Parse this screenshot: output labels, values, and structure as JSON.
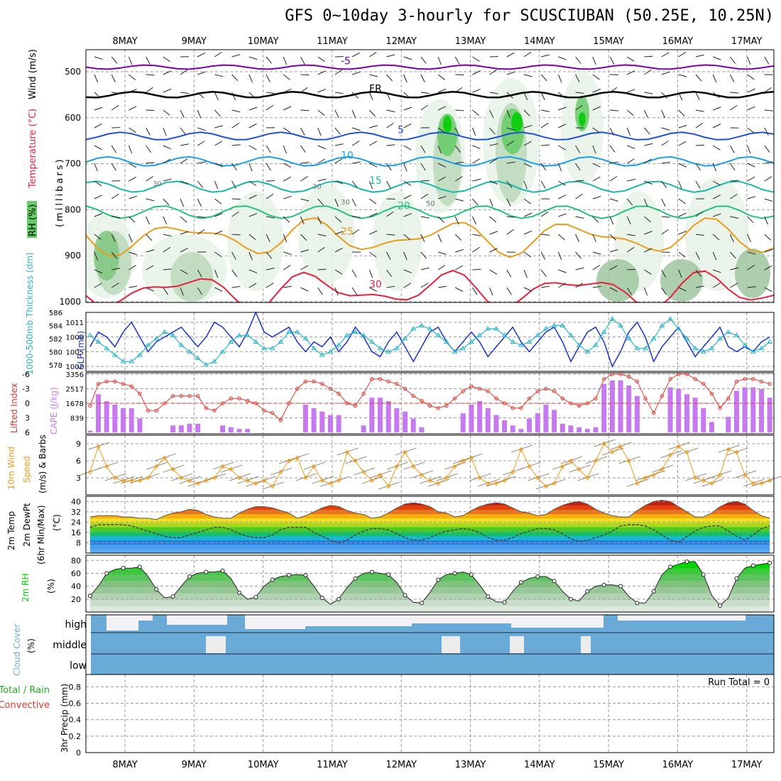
{
  "title": "GFS 0~10day 3-hourly for SCUSCIUBAN (50.25E, 10.25N)",
  "colors": {
    "rh_dark": "#00cc00",
    "rh_mid": "#66cc66",
    "rh_light": "#e6f2e6",
    "temp_purple": "#7a00a8",
    "temp_blue": "#1f4fd6",
    "temp_sky": "#1a9fe0",
    "temp_teal": "#19b6b0",
    "temp_green": "#22c27a",
    "temp_orange": "#e89c1a",
    "temp_red": "#e5213b",
    "slp": "#1a33c8",
    "thickness": "#2ab5c8",
    "lifted": "#e0362b",
    "cape": "#c77af0",
    "wind": "#e89c1a",
    "barb": "#8b6a4a",
    "cloud": "#6aaad6",
    "rh2m": "#00cc00",
    "precip_conv": "#e0362b",
    "precip_total": "#22aa22"
  },
  "chart_data": [
    {
      "id": "upper_air",
      "type": "heatmap",
      "xlabel": "",
      "ylabel": "(millibars)",
      "legend_labels": [
        "RH (%)",
        "Temperature (°C)",
        "Wind (m/s)"
      ],
      "dates": [
        "8MAY",
        "9MAY",
        "10MAY",
        "11MAY",
        "12MAY",
        "13MAY",
        "14MAY",
        "15MAY",
        "16MAY",
        "17MAY"
      ],
      "yticks": [
        "500",
        "600",
        "700",
        "800",
        "900",
        "1000"
      ],
      "ylim": [
        1000,
        450
      ],
      "rh_contour_labels": [
        "30",
        "30",
        "50",
        "30"
      ],
      "isotherms": [
        {
          "label": "-5",
          "level": 490,
          "color_key": "temp_purple"
        },
        {
          "label": "FR",
          "level": 550,
          "color_key": "freeze"
        },
        {
          "label": "5",
          "level": 640,
          "color_key": "temp_blue"
        },
        {
          "label": "10",
          "level": 695,
          "color_key": "temp_sky"
        },
        {
          "label": "15",
          "level": 750,
          "color_key": "temp_teal"
        },
        {
          "label": "20",
          "level": 805,
          "color_key": "temp_green"
        },
        {
          "label": "25",
          "level": 860,
          "color_key": "temp_orange"
        },
        {
          "label": "30",
          "level": 975,
          "color_key": "temp_red"
        }
      ]
    },
    {
      "id": "slp_thickness",
      "type": "line",
      "ylabel_left": "1000-500mb Thickness (dm)",
      "ylabel_right": "SLP (mb)",
      "left_ticks": [
        "586",
        "584",
        "582",
        "580",
        "578"
      ],
      "left_range": [
        577,
        586
      ],
      "right_ticks": [
        "1011",
        "1008",
        "1005",
        "1002"
      ],
      "right_range": [
        1001,
        1013
      ],
      "series": [
        {
          "name": "SLP (mb)",
          "values": [
            1006,
            1009,
            1008,
            1006,
            1009,
            1011,
            1008,
            1005,
            1007,
            1008,
            1009,
            1010,
            1008,
            1006,
            1008,
            1011,
            1010,
            1008,
            1006,
            1009,
            1013,
            1009,
            1008,
            1009,
            1010,
            1007,
            1005,
            1007,
            1006,
            1008,
            1005,
            1007,
            1010,
            1008,
            1005,
            1004,
            1007,
            1009,
            1006,
            1003,
            1006,
            1009,
            1010,
            1007,
            1005,
            1007,
            1009,
            1007,
            1004,
            1006,
            1008,
            1010,
            1007,
            1005,
            1007,
            1009,
            1010,
            1007,
            1003,
            1006,
            1009,
            1010,
            1007,
            1002,
            1005,
            1009,
            1011,
            1008,
            1003,
            1006,
            1008,
            1010,
            1007,
            1004,
            1006,
            1008,
            1010,
            1006,
            1005,
            1006,
            1005,
            1007,
            1008
          ]
        },
        {
          "name": "1000-500mb Thickness (dm)",
          "values": [
            582.5,
            581.5,
            580.5,
            579.5,
            578.5,
            578.5,
            579.5,
            581,
            582,
            583,
            582.5,
            581,
            580,
            579,
            578,
            578.5,
            580,
            581.5,
            582.5,
            582.5,
            581.5,
            580.5,
            580.5,
            581.5,
            583,
            583,
            582,
            580.5,
            579.5,
            580,
            581,
            582.5,
            583,
            582.5,
            581.5,
            580.5,
            580,
            580.5,
            582,
            583.5,
            584,
            583.5,
            582.5,
            581.5,
            580,
            580.5,
            581.5,
            582.5,
            583.5,
            583.5,
            582.5,
            581.5,
            581,
            581.5,
            582.5,
            583.5,
            584,
            584,
            582.5,
            581,
            580,
            581,
            583,
            585,
            584,
            582,
            580.5,
            580.5,
            582,
            584,
            585,
            583.5,
            582,
            580.5,
            580,
            580.5,
            582,
            583,
            582.5,
            581,
            580,
            580.5,
            581.5
          ]
        }
      ]
    },
    {
      "id": "cape_li",
      "type": "bar",
      "ylabel_left": "Lifted Index",
      "ylabel_right": "CAPE (J/kg)",
      "left_ticks": [
        "-6",
        "-3",
        "0",
        "3",
        "6"
      ],
      "left_range": [
        -6,
        6
      ],
      "right_ticks": [
        "3356",
        "2517",
        "1678",
        "839"
      ],
      "right_range": [
        0,
        3356
      ],
      "cape_values": [
        100,
        2200,
        1800,
        1600,
        1400,
        1400,
        800,
        0,
        0,
        0,
        400,
        400,
        500,
        500,
        0,
        0,
        400,
        300,
        200,
        200,
        0,
        0,
        0,
        0,
        0,
        0,
        1600,
        1400,
        1200,
        1000,
        1000,
        0,
        0,
        400,
        2000,
        2000,
        1800,
        1400,
        1200,
        800,
        300,
        0,
        0,
        0,
        0,
        1100,
        1600,
        1800,
        1400,
        1000,
        700,
        400,
        200,
        800,
        1100,
        1600,
        1300,
        500,
        400,
        300,
        200,
        300,
        2800,
        3000,
        3000,
        2700,
        2100,
        0,
        0,
        0,
        2600,
        2500,
        2200,
        2000,
        1400,
        600,
        0,
        900,
        2400,
        2600,
        2600,
        2500,
        2000
      ],
      "lifted_index": [
        0.5,
        -4,
        -4.5,
        -4.5,
        -4,
        -3.5,
        -2,
        1.5,
        1.5,
        0,
        -1.5,
        -1.5,
        -1.5,
        -1.5,
        1,
        1.5,
        0,
        -1,
        -1,
        -0.5,
        0,
        1.5,
        2,
        3.5,
        0,
        -3,
        -4.5,
        -4.5,
        -4,
        -3,
        -2,
        0,
        0.5,
        -2,
        -5,
        -5,
        -4.5,
        -4,
        -3,
        -1.5,
        -0.5,
        0.5,
        1,
        0.5,
        -1,
        -2.5,
        -3.5,
        -3,
        -2.5,
        -1,
        0,
        1,
        1,
        -1,
        -2.5,
        -3,
        -2.5,
        -1,
        0,
        0.5,
        0,
        -1,
        -5,
        -6,
        -6,
        -5.5,
        -4.5,
        -1,
        2,
        -1.5,
        -5,
        -6,
        -6,
        -5,
        -4,
        -2,
        1,
        -1,
        -4.5,
        -5,
        -5,
        -4.5,
        -4
      ]
    },
    {
      "id": "wind10m",
      "type": "line",
      "ylabel": "10m Wind Speed (m/s) & Barbs",
      "yticks": [
        "9",
        "6",
        "3"
      ],
      "ylim": [
        0,
        10.5
      ],
      "values": [
        4,
        8.5,
        5,
        3,
        2.5,
        2.5,
        2.5,
        3,
        5,
        6.5,
        4.5,
        3,
        2.5,
        2,
        2.5,
        3,
        5,
        4.5,
        3,
        2.5,
        2,
        2.5,
        1.5,
        4,
        6,
        6.5,
        3,
        5,
        2.5,
        2,
        2.5,
        7.5,
        6,
        4,
        2.5,
        3.5,
        1.5,
        5,
        7.5,
        5,
        3.5,
        2.5,
        2,
        3,
        5,
        6,
        6.5,
        3,
        2,
        2,
        2.5,
        4,
        8,
        5,
        3,
        1.5,
        2,
        5,
        6,
        4.5,
        3,
        6,
        9,
        7.5,
        8.5,
        6,
        2,
        3,
        3.5,
        4.5,
        7,
        8.5,
        7.5,
        3,
        2.5,
        2,
        3.5,
        8,
        7.5,
        3.5,
        2,
        2,
        2.5
      ]
    },
    {
      "id": "temp2m",
      "type": "area",
      "ylabel": "2m Temp 2m DewPt (6hr Min/Max) (°C)",
      "yticks": [
        "40",
        "32",
        "24",
        "16",
        "8"
      ],
      "ylim": [
        0,
        44
      ],
      "temperature": [
        28,
        29,
        29,
        29,
        28,
        28,
        27,
        27,
        26,
        29,
        31,
        32,
        34,
        33,
        30,
        28,
        27,
        27,
        31,
        34,
        36,
        36,
        35,
        33,
        31,
        27,
        29,
        32,
        35,
        37,
        36,
        33,
        31,
        30,
        27,
        28,
        31,
        35,
        38,
        39,
        38,
        36,
        32,
        31,
        28,
        29,
        33,
        36,
        38,
        39,
        38,
        35,
        32,
        31,
        29,
        30,
        34,
        37,
        39,
        40,
        38,
        34,
        31,
        29,
        28,
        28,
        33,
        37,
        40,
        41,
        40,
        36,
        32,
        28,
        28,
        31,
        36,
        39,
        40,
        38,
        33,
        29,
        27
      ],
      "dewpoint": [
        20,
        22,
        22,
        22,
        22,
        21,
        19,
        17,
        15,
        13,
        12,
        12,
        14,
        16,
        18,
        20,
        20,
        18,
        15,
        13,
        12,
        12,
        14,
        18,
        20,
        20,
        20,
        16,
        13,
        10,
        8,
        10,
        14,
        17,
        19,
        19,
        18,
        15,
        12,
        10,
        10,
        12,
        15,
        17,
        18,
        19,
        18,
        16,
        12,
        10,
        10,
        12,
        15,
        17,
        19,
        19,
        18,
        15,
        11,
        9,
        10,
        12,
        14,
        17,
        21,
        22,
        22,
        21,
        18,
        14,
        10,
        8,
        13,
        17,
        20,
        21,
        21,
        17,
        13,
        10,
        14,
        19,
        21
      ]
    },
    {
      "id": "rh2m",
      "type": "area",
      "ylabel": "2m RH (%)",
      "yticks": [
        "80",
        "60",
        "40",
        "20"
      ],
      "ylim": [
        0,
        88
      ],
      "values": [
        25,
        40,
        60,
        66,
        68,
        68,
        70,
        55,
        35,
        22,
        24,
        40,
        55,
        60,
        62,
        62,
        64,
        52,
        30,
        20,
        23,
        40,
        50,
        55,
        57,
        58,
        57,
        40,
        22,
        12,
        20,
        38,
        52,
        60,
        62,
        60,
        58,
        46,
        26,
        15,
        14,
        30,
        50,
        58,
        60,
        62,
        58,
        42,
        24,
        16,
        15,
        32,
        46,
        52,
        55,
        55,
        48,
        32,
        20,
        17,
        32,
        40,
        42,
        42,
        40,
        24,
        14,
        14,
        32,
        58,
        70,
        74,
        78,
        78,
        58,
        26,
        10,
        22,
        52,
        68,
        72,
        74,
        76
      ]
    },
    {
      "id": "cloud_cover",
      "type": "area",
      "ylabel": "Cloud Cover (%)",
      "levels": [
        "high",
        "middle",
        "low"
      ]
    },
    {
      "id": "precip",
      "type": "bar",
      "ylabel": "3hr Precip (mm)",
      "legend_labels": [
        "Total / Rain",
        "Convective"
      ],
      "yticks": [
        "0.8",
        "0.6",
        "0.4",
        "0.2",
        "0"
      ],
      "ylim": [
        0,
        0.95
      ],
      "values": [],
      "run_total_label": "Run Total = 0"
    }
  ]
}
